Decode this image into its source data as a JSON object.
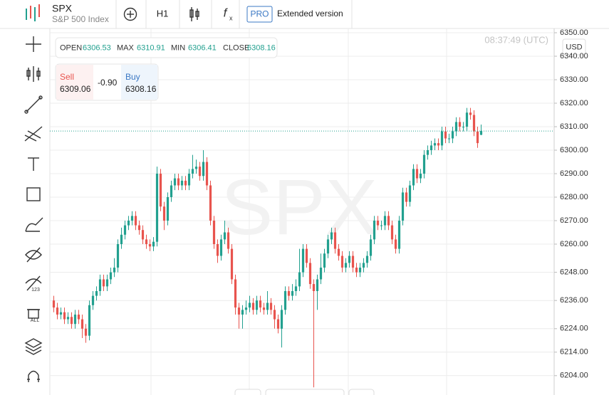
{
  "header": {
    "symbol": "SPX",
    "name": "S&P 500 Index",
    "timeframe": "H1",
    "badge": "PRO",
    "mode": "Extended version"
  },
  "ohlc": {
    "open": "OPEN",
    "max": "MAX",
    "min": "MIN",
    "close": "CLOSE"
  },
  "trade": {
    "sell": "Sell",
    "sell_price": 6309.06,
    "change": "-0.90",
    "buy": "Buy"
  },
  "currency": "USD",
  "time": "08:37:49 (UTC)",
  "toolbar": {
    "alerts_badge": "123",
    "delete_badge": "ALL"
  },
  "chart_data": {
    "type": "candlestick",
    "up_color": "#22a08f",
    "down_color": "#e8544e",
    "grid": true,
    "ylim": [
      6198,
      6352
    ],
    "yticks": [
      {
        "value": 6350,
        "label": "6350.00"
      },
      {
        "value": 6340,
        "label": "6340.00"
      },
      {
        "value": 6330,
        "label": "6330.00"
      },
      {
        "value": 6320,
        "label": "6320.00"
      },
      {
        "value": 6310,
        "label": "6310.00"
      },
      {
        "value": 6300,
        "label": "6300.00"
      },
      {
        "value": 6290,
        "label": "6290.00"
      },
      {
        "value": 6280,
        "label": "6280.00"
      },
      {
        "value": 6270,
        "label": "6270.00"
      },
      {
        "value": 6260,
        "label": "6260.00"
      },
      {
        "value": 6248,
        "label": "6248.00"
      },
      {
        "value": 6236,
        "label": "6236.00"
      },
      {
        "value": 6224,
        "label": "6224.00"
      },
      {
        "value": 6214,
        "label": "6214.00"
      },
      {
        "value": 6204,
        "label": "6204.00"
      }
    ],
    "candles": [
      [
        6236,
        6238,
        6231,
        6233
      ],
      [
        6233,
        6235,
        6228,
        6230
      ],
      [
        6230,
        6233,
        6228,
        6231
      ],
      [
        6231,
        6233,
        6226,
        6228
      ],
      [
        6228,
        6231,
        6226,
        6229
      ],
      [
        6229,
        6231,
        6224,
        6226
      ],
      [
        6226,
        6232,
        6224,
        6230
      ],
      [
        6230,
        6232,
        6226,
        6228
      ],
      [
        6228,
        6230,
        6220,
        6224
      ],
      [
        6224,
        6226,
        6218,
        6221
      ],
      [
        6221,
        6236,
        6219,
        6234
      ],
      [
        6234,
        6240,
        6232,
        6238
      ],
      [
        6238,
        6242,
        6236,
        6240
      ],
      [
        6240,
        6247,
        6238,
        6245
      ],
      [
        6245,
        6247,
        6240,
        6242
      ],
      [
        6242,
        6247,
        6240,
        6245
      ],
      [
        6245,
        6250,
        6243,
        6248
      ],
      [
        6248,
        6254,
        6246,
        6250
      ],
      [
        6250,
        6262,
        6248,
        6260
      ],
      [
        6260,
        6267,
        6258,
        6264
      ],
      [
        6264,
        6270,
        6262,
        6268
      ],
      [
        6268,
        6272,
        6266,
        6270
      ],
      [
        6270,
        6274,
        6268,
        6272
      ],
      [
        6272,
        6274,
        6266,
        6268
      ],
      [
        6268,
        6270,
        6264,
        6266
      ],
      [
        6266,
        6268,
        6260,
        6262
      ],
      [
        6262,
        6264,
        6258,
        6260
      ],
      [
        6260,
        6262,
        6257,
        6259
      ],
      [
        6259,
        6263,
        6257,
        6261
      ],
      [
        6261,
        6293,
        6259,
        6290
      ],
      [
        6290,
        6292,
        6274,
        6276
      ],
      [
        6276,
        6278,
        6266,
        6270
      ],
      [
        6270,
        6282,
        6268,
        6280
      ],
      [
        6280,
        6287,
        6278,
        6285
      ],
      [
        6285,
        6290,
        6283,
        6288
      ],
      [
        6288,
        6290,
        6283,
        6285
      ],
      [
        6285,
        6289,
        6283,
        6287
      ],
      [
        6287,
        6289,
        6283,
        6285
      ],
      [
        6285,
        6292,
        6283,
        6290
      ],
      [
        6290,
        6298,
        6288,
        6292
      ],
      [
        6292,
        6296,
        6290,
        6293
      ],
      [
        6293,
        6295,
        6287,
        6289
      ],
      [
        6289,
        6300,
        6287,
        6295
      ],
      [
        6295,
        6297,
        6283,
        6285
      ],
      [
        6285,
        6287,
        6268,
        6270
      ],
      [
        6270,
        6272,
        6258,
        6260
      ],
      [
        6260,
        6262,
        6252,
        6255
      ],
      [
        6255,
        6264,
        6253,
        6262
      ],
      [
        6262,
        6270,
        6260,
        6265
      ],
      [
        6265,
        6267,
        6256,
        6258
      ],
      [
        6258,
        6260,
        6243,
        6245
      ],
      [
        6245,
        6247,
        6230,
        6233
      ],
      [
        6233,
        6235,
        6224,
        6230
      ],
      [
        6230,
        6234,
        6224,
        6232
      ],
      [
        6232,
        6236,
        6230,
        6233
      ],
      [
        6233,
        6238,
        6231,
        6235
      ],
      [
        6235,
        6237,
        6230,
        6232
      ],
      [
        6232,
        6238,
        6230,
        6236
      ],
      [
        6236,
        6238,
        6231,
        6233
      ],
      [
        6233,
        6235,
        6230,
        6232
      ],
      [
        6232,
        6240,
        6230,
        6235
      ],
      [
        6235,
        6237,
        6230,
        6232
      ],
      [
        6232,
        6234,
        6224,
        6228
      ],
      [
        6228,
        6230,
        6222,
        6224
      ],
      [
        6224,
        6234,
        6216,
        6232
      ],
      [
        6232,
        6242,
        6230,
        6240
      ],
      [
        6240,
        6242,
        6236,
        6238
      ],
      [
        6238,
        6243,
        6236,
        6240
      ],
      [
        6240,
        6245,
        6238,
        6242
      ],
      [
        6242,
        6258,
        6240,
        6248
      ],
      [
        6248,
        6260,
        6246,
        6258
      ],
      [
        6258,
        6260,
        6250,
        6252
      ],
      [
        6252,
        6254,
        6241,
        6243
      ],
      [
        6243,
        6245,
        6199,
        6240
      ],
      [
        6240,
        6247,
        6232,
        6245
      ],
      [
        6245,
        6256,
        6243,
        6250
      ],
      [
        6250,
        6258,
        6248,
        6256
      ],
      [
        6256,
        6264,
        6254,
        6262
      ],
      [
        6262,
        6267,
        6260,
        6265
      ],
      [
        6265,
        6267,
        6256,
        6258
      ],
      [
        6258,
        6260,
        6253,
        6255
      ],
      [
        6255,
        6257,
        6248,
        6250
      ],
      [
        6250,
        6254,
        6248,
        6252
      ],
      [
        6252,
        6257,
        6250,
        6255
      ],
      [
        6255,
        6257,
        6248,
        6250
      ],
      [
        6250,
        6252,
        6246,
        6248
      ],
      [
        6248,
        6252,
        6246,
        6250
      ],
      [
        6250,
        6254,
        6248,
        6252
      ],
      [
        6252,
        6257,
        6250,
        6255
      ],
      [
        6255,
        6264,
        6253,
        6262
      ],
      [
        6262,
        6272,
        6260,
        6270
      ],
      [
        6270,
        6272,
        6266,
        6268
      ],
      [
        6268,
        6270,
        6266,
        6268
      ],
      [
        6268,
        6274,
        6266,
        6272
      ],
      [
        6272,
        6274,
        6266,
        6268
      ],
      [
        6268,
        6270,
        6260,
        6262
      ],
      [
        6262,
        6264,
        6256,
        6258
      ],
      [
        6258,
        6272,
        6256,
        6270
      ],
      [
        6270,
        6284,
        6268,
        6282
      ],
      [
        6282,
        6284,
        6276,
        6278
      ],
      [
        6278,
        6287,
        6276,
        6285
      ],
      [
        6285,
        6294,
        6283,
        6292
      ],
      [
        6292,
        6294,
        6286,
        6288
      ],
      [
        6288,
        6292,
        6286,
        6290
      ],
      [
        6290,
        6300,
        6288,
        6298
      ],
      [
        6298,
        6302,
        6296,
        6300
      ],
      [
        6300,
        6304,
        6298,
        6302
      ],
      [
        6302,
        6305,
        6300,
        6303
      ],
      [
        6303,
        6305,
        6300,
        6302
      ],
      [
        6302,
        6310,
        6300,
        6308
      ],
      [
        6308,
        6310,
        6303,
        6305
      ],
      [
        6305,
        6307,
        6303,
        6305
      ],
      [
        6305,
        6310,
        6303,
        6308
      ],
      [
        6308,
        6314,
        6306,
        6312
      ],
      [
        6312,
        6314,
        6308,
        6310
      ],
      [
        6310,
        6312,
        6308,
        6310
      ],
      [
        6310,
        6318,
        6308,
        6316
      ],
      [
        6316,
        6318,
        6313,
        6315
      ],
      [
        6315,
        6317,
        6306,
        6308
      ],
      [
        6308,
        6310,
        6301,
        6303
      ],
      [
        6306.53,
        6310.91,
        6306.41,
        6308.16
      ]
    ]
  }
}
